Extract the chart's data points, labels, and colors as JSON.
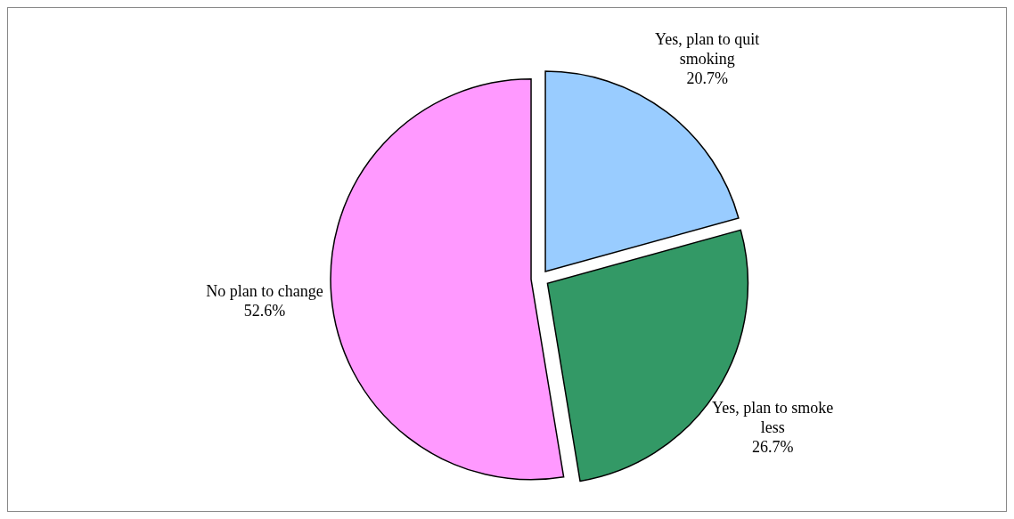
{
  "chart_data": {
    "type": "pie",
    "categories": [
      "Yes, plan to quit smoking",
      "Yes, plan to smoke less",
      "No plan to change"
    ],
    "values": [
      20.7,
      26.7,
      52.6
    ],
    "colors": [
      "#99ccff",
      "#339966",
      "#ff99ff"
    ],
    "value_labels": [
      "20.7%",
      "26.7%",
      "52.6%"
    ]
  }
}
